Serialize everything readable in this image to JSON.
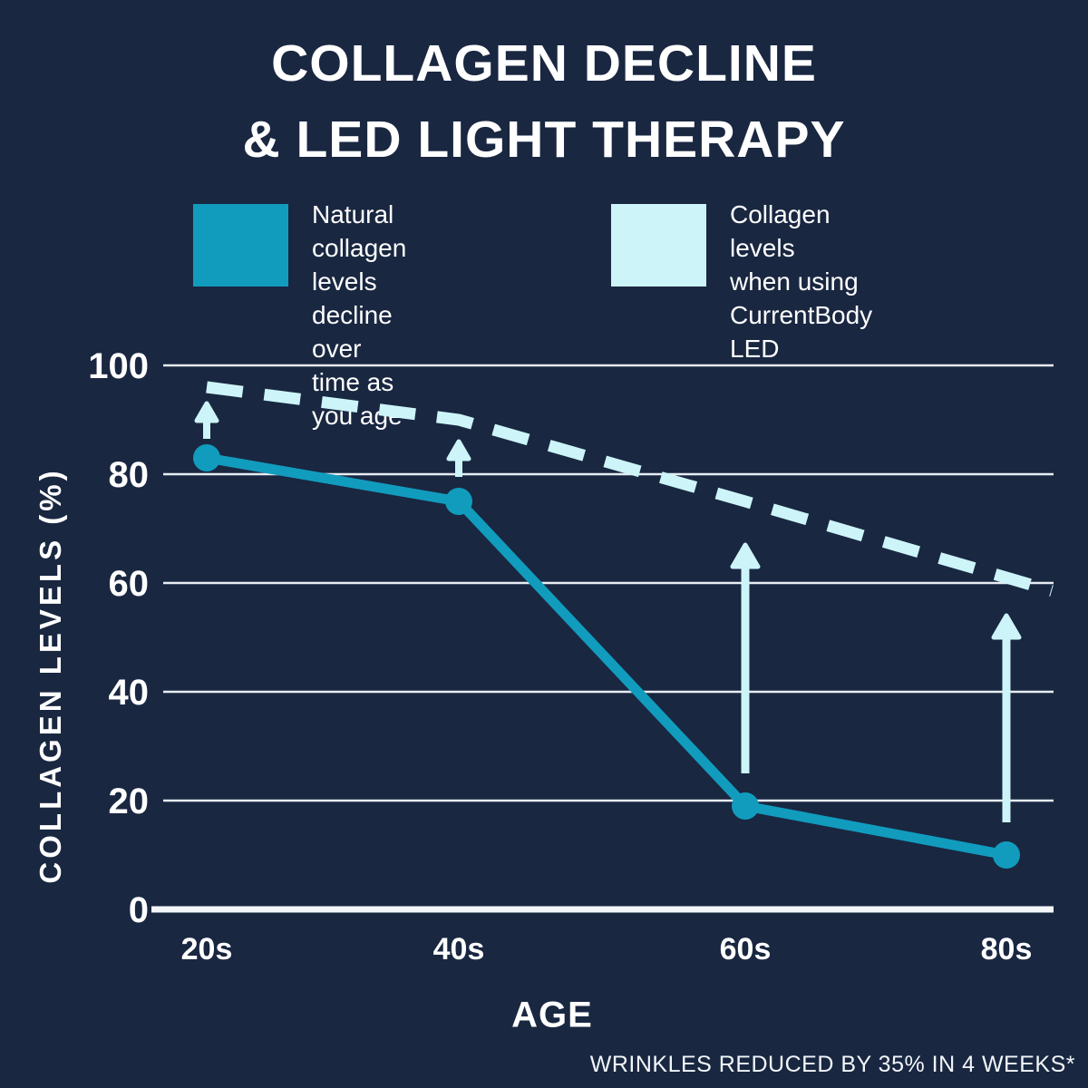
{
  "title": {
    "line1": "COLLAGEN DECLINE",
    "line2": "& LED LIGHT THERAPY"
  },
  "legend": {
    "items": [
      {
        "label": "Natural collagen\nlevels decline over\ntime as you age",
        "color": "#119CBE"
      },
      {
        "label": "Collagen levels\nwhen using\nCurrentBody LED",
        "color": "#CDF5F9"
      }
    ]
  },
  "axes": {
    "x_label": "AGE",
    "y_label": "COLLAGEN LEVELS (%)"
  },
  "footnote": "WRINKLES REDUCED BY 35% IN 4 WEEKS*",
  "colors": {
    "background": "#192741",
    "text": "#FFFFFF",
    "grid": "#E8EDF2",
    "axis": "#F3F7FA",
    "natural_line": "#119CBE",
    "led_line": "#CDF5F9"
  },
  "chart_data": {
    "type": "line",
    "categories": [
      "20s",
      "40s",
      "60s",
      "80s"
    ],
    "series": [
      {
        "name": "Natural collagen levels decline over time as you age",
        "style": "solid",
        "color": "#119CBE",
        "markers": true,
        "values": [
          83,
          75,
          19,
          10
        ]
      },
      {
        "name": "Collagen levels when using CurrentBody LED",
        "style": "dashed",
        "color": "#CDF5F9",
        "markers": false,
        "values": [
          96,
          90,
          75,
          61
        ]
      }
    ],
    "xlabel": "AGE",
    "ylabel": "COLLAGEN LEVELS (%)",
    "yticks": [
      0,
      20,
      40,
      60,
      80,
      100
    ],
    "ylim": [
      0,
      100
    ],
    "grid": true,
    "legend_position": "top",
    "annotations": {
      "arrows_up": [
        {
          "category": "20s",
          "from": 86.5,
          "to": 93,
          "size": "small"
        },
        {
          "category": "40s",
          "from": 79.5,
          "to": 86,
          "size": "small"
        },
        {
          "category": "60s",
          "from": 25,
          "to": 67,
          "size": "large"
        },
        {
          "category": "80s",
          "from": 16,
          "to": 54,
          "size": "large"
        }
      ],
      "meaning": "Up arrows show collagen boost from natural level toward LED level"
    }
  }
}
